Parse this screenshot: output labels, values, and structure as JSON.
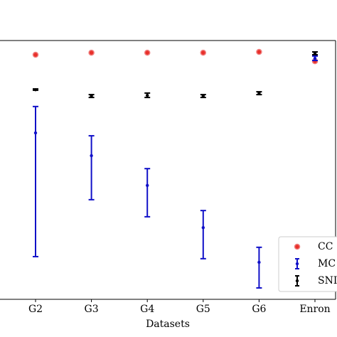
{
  "chart_data": {
    "type": "errorbar",
    "x_label": "Datasets",
    "categories": [
      "G2",
      "G3",
      "G4",
      "G5",
      "G6",
      "Enron"
    ],
    "ylim": [
      0,
      1
    ],
    "series": [
      {
        "name": "CC",
        "color": "#e8302a",
        "marker": "ring",
        "values": [
          0.945,
          0.953,
          0.953,
          0.953,
          0.956,
          0.92
        ]
      },
      {
        "name": "MC",
        "color": "#1010c8",
        "marker": "dot",
        "values": [
          0.643,
          0.555,
          0.44,
          0.277,
          0.143,
          0.931
        ],
        "low": [
          0.165,
          0.385,
          0.319,
          0.157,
          0.044,
          0.923
        ],
        "high": [
          0.745,
          0.632,
          0.505,
          0.343,
          0.201,
          0.94
        ]
      },
      {
        "name": "SNI",
        "color": "#000000",
        "marker": "dot",
        "values": [
          0.81,
          0.786,
          0.788,
          0.786,
          0.797,
          0.951
        ],
        "low": [
          0.808,
          0.78,
          0.78,
          0.78,
          0.791,
          0.945
        ],
        "high": [
          0.813,
          0.791,
          0.797,
          0.791,
          0.802,
          0.956
        ]
      }
    ]
  }
}
